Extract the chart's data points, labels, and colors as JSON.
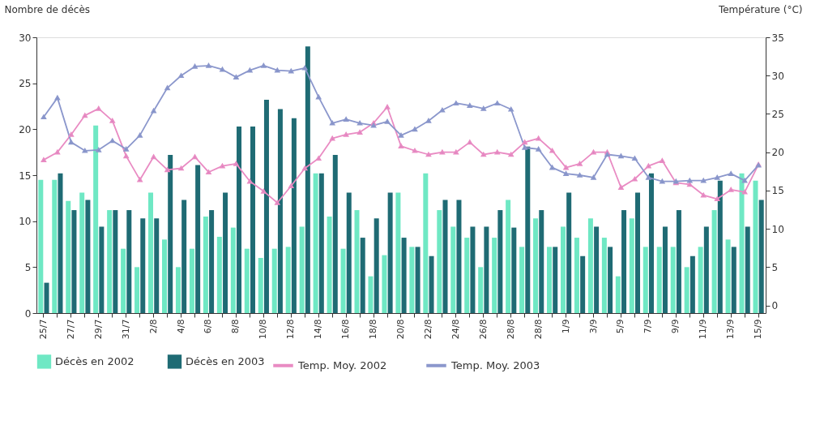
{
  "chart_data": {
    "type": "bar",
    "ylabel": "Nombre de décès",
    "y2label": "Température (°C)",
    "categories": [
      "25/7",
      null,
      "27/7",
      null,
      "29/7",
      null,
      "31/7",
      null,
      "2/8",
      null,
      "4/8",
      null,
      "6/8",
      null,
      "8/8",
      null,
      "10/8",
      null,
      "12/8",
      null,
      "14/8",
      null,
      "16/8",
      null,
      "18/8",
      null,
      "20/8",
      null,
      "22/8",
      null,
      "24/8",
      null,
      "26/8",
      null,
      "28/8",
      null,
      "28/8",
      null,
      "1/9",
      null,
      "3/9",
      null,
      "5/9",
      null,
      "7/9",
      null,
      "9/9",
      null,
      "11/9",
      null,
      "13/9",
      null,
      "15/9"
    ],
    "series": [
      {
        "name": "Décès en 2002",
        "color": "#6fe8c4",
        "values": [
          14.5,
          14.5,
          12.2,
          13.1,
          20.4,
          11.2,
          7,
          5,
          13.1,
          8,
          5,
          7,
          10.5,
          8.3,
          9.3,
          7,
          6,
          7,
          7.2,
          9.4,
          15.2,
          10.5,
          7,
          11.2,
          4,
          6.3,
          13.1,
          7.2,
          15.2,
          11.2,
          9.4,
          8.2,
          5,
          8.2,
          12.3,
          7.2,
          10.3,
          7.2,
          9.4,
          8.2,
          10.3,
          8.2,
          4,
          10.3,
          7.2,
          7.2,
          7.2,
          5,
          7.2,
          11.2,
          8,
          15.2,
          14.4
        ]
      },
      {
        "name": "Décès en 2003",
        "color": "#1f6b74",
        "values": [
          3.3,
          15.2,
          11.2,
          12.3,
          9.4,
          11.2,
          11.2,
          10.3,
          10.3,
          17.2,
          12.3,
          16.1,
          11.2,
          13.1,
          20.3,
          20.3,
          23.2,
          22.2,
          21.2,
          29,
          15.2,
          17.2,
          13.1,
          8.2,
          10.3,
          13.1,
          8.2,
          7.2,
          6.2,
          12.3,
          12.3,
          9.4,
          9.4,
          11.2,
          9.3,
          18.1,
          11.2,
          7.2,
          13.1,
          6.2,
          9.4,
          7.2,
          11.2,
          13.1,
          15.2,
          9.4,
          11.2,
          6.2,
          9.4,
          14.4,
          7.2,
          9.4,
          12.3
        ]
      },
      {
        "name": "Temp. Moy. 2002",
        "color": "#e98bc3",
        "type": "line",
        "axis": "y2",
        "values": [
          19,
          20,
          22.3,
          24.8,
          25.7,
          24.1,
          19.5,
          16.4,
          19.4,
          17.7,
          17.9,
          19.4,
          17.4,
          18.2,
          18.5,
          16.2,
          14.9,
          13.4,
          15.6,
          17.9,
          19.2,
          21.8,
          22.3,
          22.6,
          23.8,
          25.9,
          20.8,
          20.2,
          19.7,
          20,
          20,
          21.3,
          19.7,
          20,
          19.7,
          21.3,
          21.8,
          20.2,
          18,
          18.5,
          20,
          20,
          15.4,
          16.5,
          18.2,
          18.9,
          16,
          15.8,
          14.4,
          13.9,
          15.1,
          14.8,
          18.4
        ]
      },
      {
        "name": "Temp. Moy. 2003",
        "color": "#8b97cc",
        "type": "line",
        "axis": "y2",
        "values": [
          24.6,
          27.1,
          21.3,
          20.2,
          20.3,
          21.5,
          20.4,
          22.2,
          25.4,
          28.4,
          30,
          31.2,
          31.3,
          30.8,
          29.8,
          30.7,
          31.3,
          30.7,
          30.6,
          31,
          27.2,
          23.8,
          24.3,
          23.8,
          23.5,
          24,
          22.2,
          23,
          24.1,
          25.5,
          26.4,
          26.1,
          25.7,
          26.4,
          25.6,
          20.6,
          20.4,
          18,
          17.2,
          17,
          16.7,
          19.7,
          19.5,
          19.2,
          16.7,
          16.2,
          16.2,
          16.3,
          16.3,
          16.7,
          17.2,
          16.3,
          18.3
        ]
      }
    ],
    "ylim": [
      0,
      30
    ],
    "yticks": [
      0,
      5,
      10,
      15,
      20,
      25,
      30
    ],
    "y2lim": [
      -1,
      35
    ],
    "y2ticks": [
      0,
      5,
      10,
      15,
      20,
      25,
      30,
      35
    ],
    "grid": false,
    "legend": "bottom",
    "marker": "triangle",
    "line_style": "solid"
  }
}
